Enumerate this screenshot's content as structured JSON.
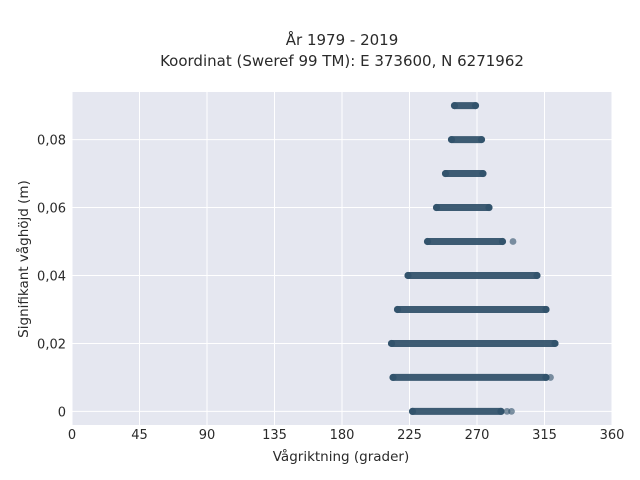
{
  "chart_data": {
    "type": "scatter",
    "title_line1": "År 1979 - 2019",
    "title_line2": "Koordinat (Sweref 99 TM): E 373600, N 6271962",
    "xlabel": "Vågriktning (grader)",
    "ylabel": "Signifikant våghöjd (m)",
    "xlim": [
      0,
      360
    ],
    "ylim": [
      -0.004,
      0.094
    ],
    "x_ticks": [
      0,
      45,
      90,
      135,
      180,
      225,
      270,
      315,
      360
    ],
    "x_tick_labels": [
      "0",
      "45",
      "90",
      "135",
      "180",
      "225",
      "270",
      "315",
      "360"
    ],
    "y_ticks": [
      0,
      0.02,
      0.04,
      0.06,
      0.08
    ],
    "y_tick_labels": [
      "0",
      "0,02",
      "0,04",
      "0,06",
      "0,08"
    ],
    "grid": true,
    "background_color": "#e5e7f0",
    "marker_color": "#2f5069",
    "bands": [
      {
        "y": 0.0,
        "x_min": 227,
        "x_max": 286,
        "outliers": [
          290,
          293
        ]
      },
      {
        "y": 0.01,
        "x_min": 214,
        "x_max": 316,
        "outliers": [
          319
        ]
      },
      {
        "y": 0.02,
        "x_min": 213,
        "x_max": 322,
        "outliers": []
      },
      {
        "y": 0.03,
        "x_min": 217,
        "x_max": 316,
        "outliers": []
      },
      {
        "y": 0.04,
        "x_min": 224,
        "x_max": 310,
        "outliers": []
      },
      {
        "y": 0.05,
        "x_min": 237,
        "x_max": 287,
        "outliers": [
          294
        ]
      },
      {
        "y": 0.06,
        "x_min": 243,
        "x_max": 278,
        "outliers": []
      },
      {
        "y": 0.07,
        "x_min": 249,
        "x_max": 274,
        "outliers": []
      },
      {
        "y": 0.08,
        "x_min": 253,
        "x_max": 273,
        "outliers": []
      },
      {
        "y": 0.09,
        "x_min": 255,
        "x_max": 269,
        "outliers": []
      }
    ]
  }
}
